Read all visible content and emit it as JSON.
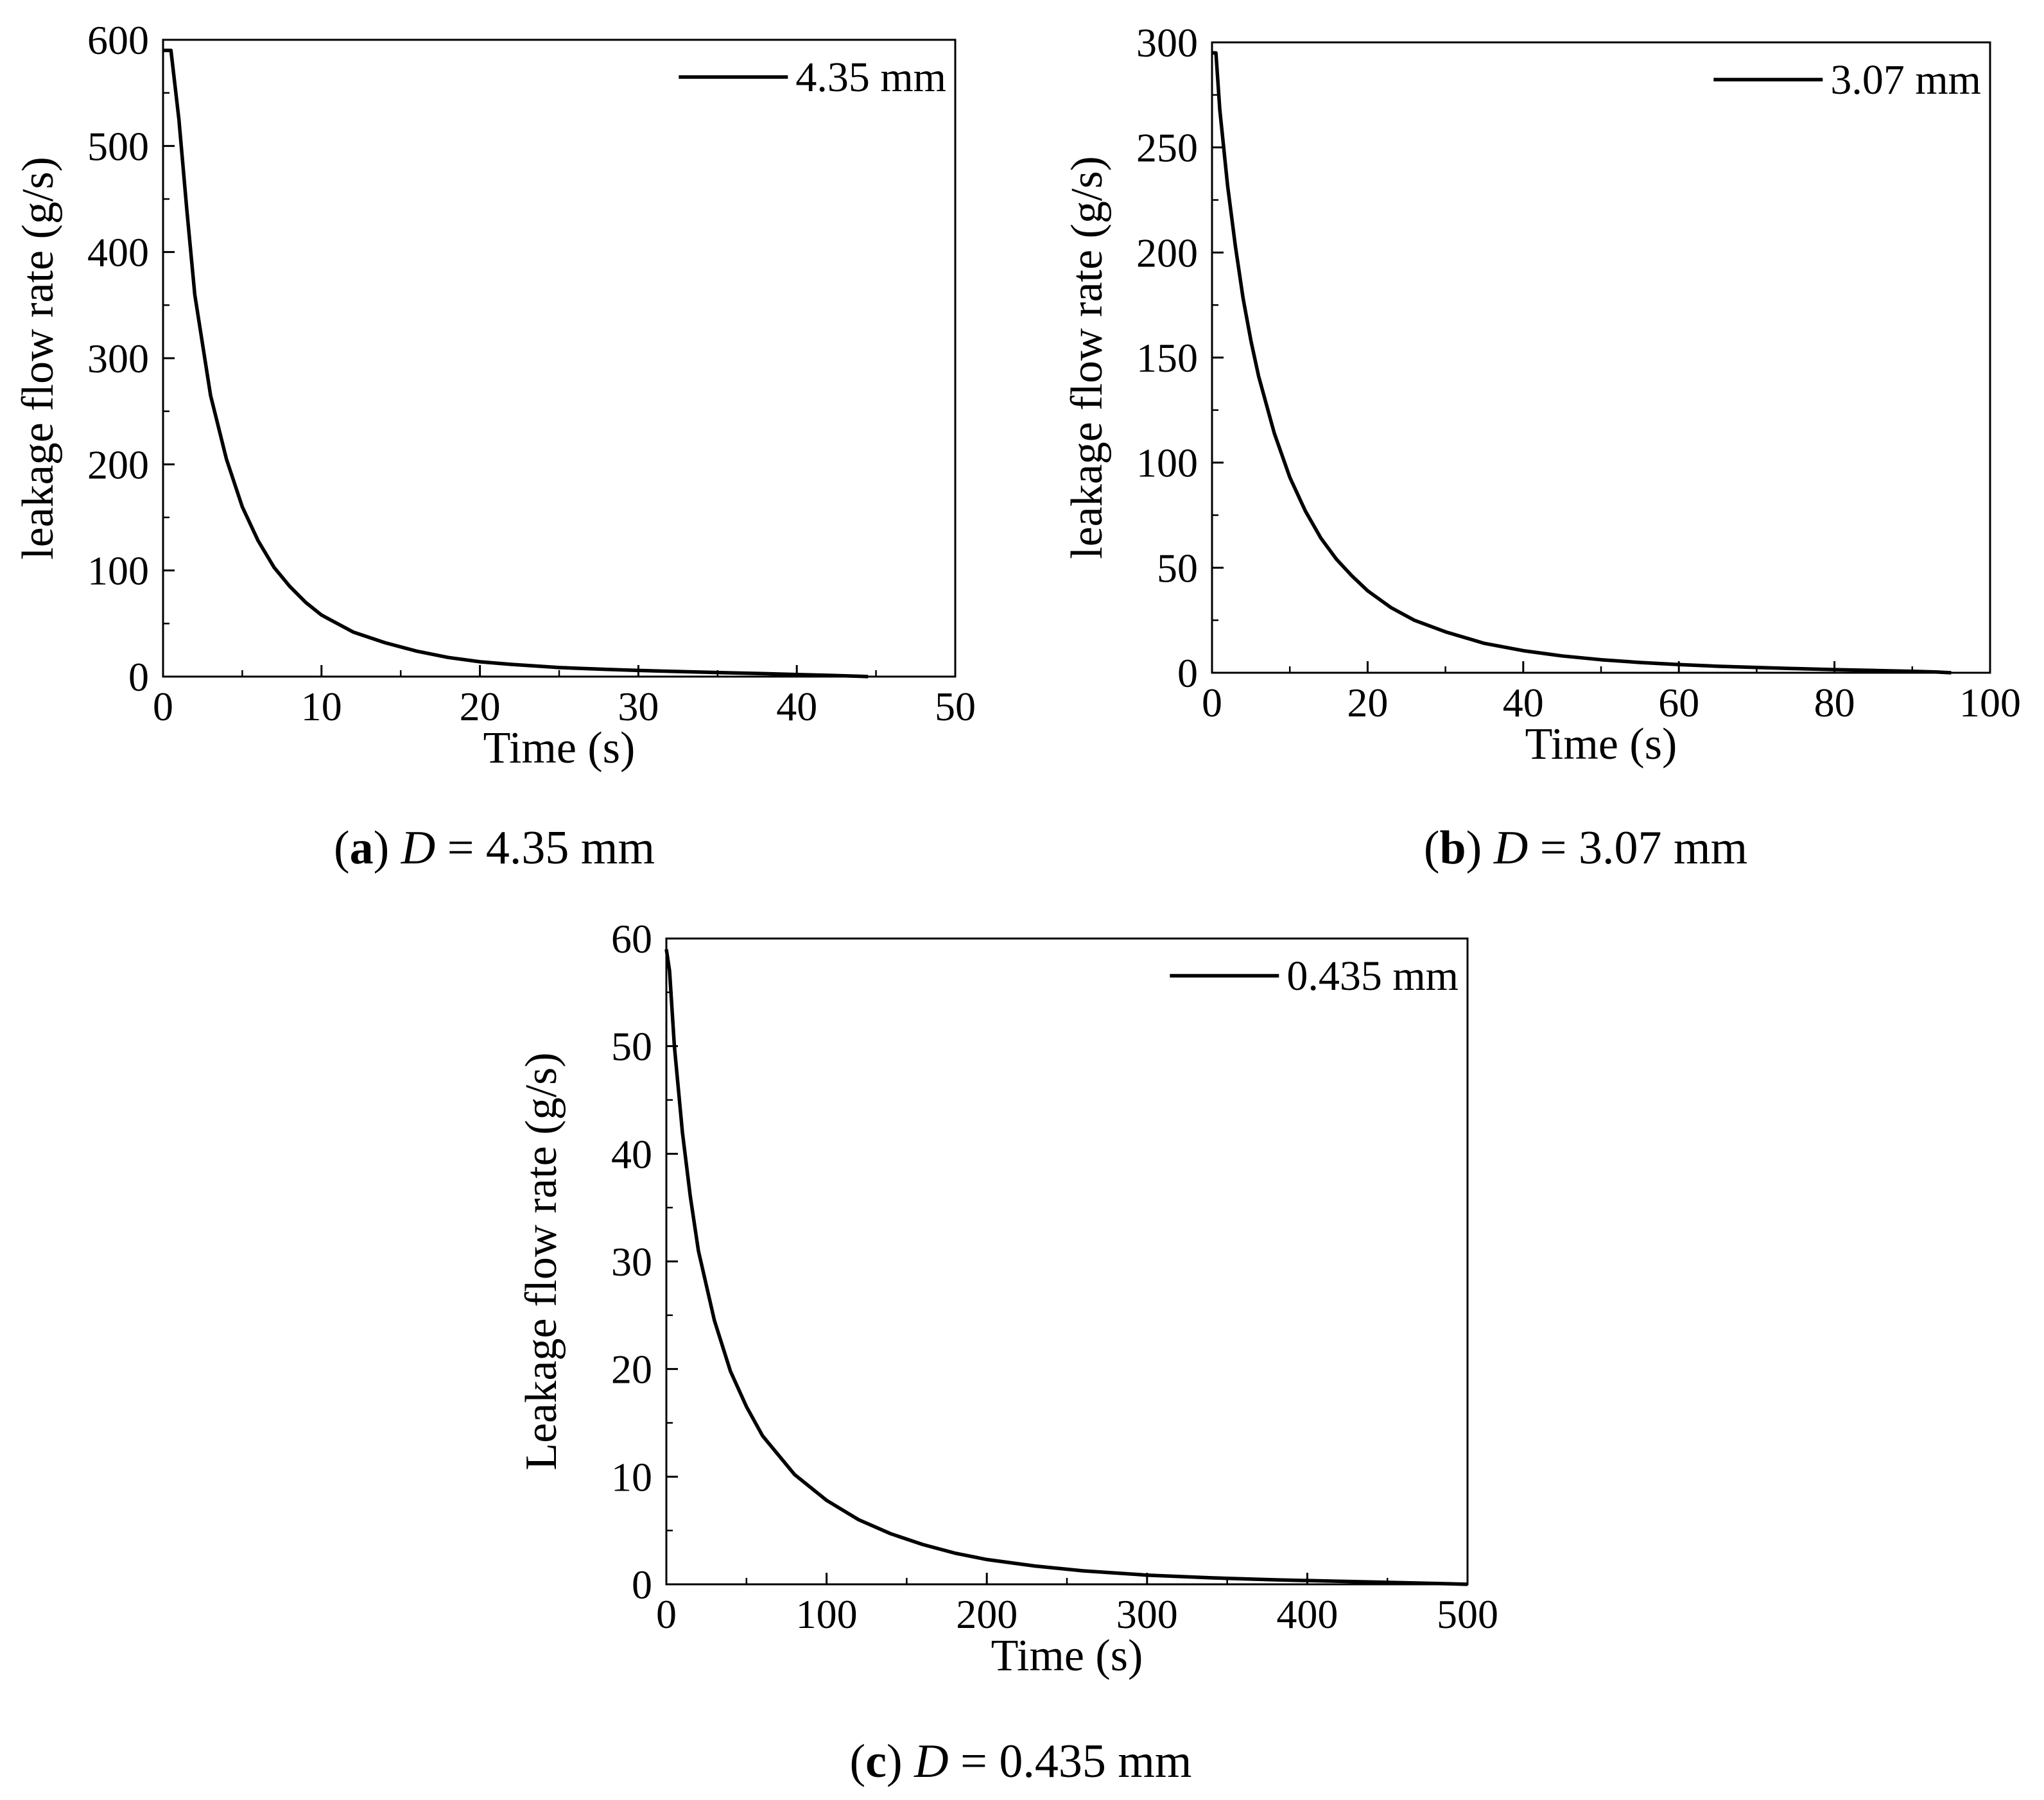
{
  "chart_data": [
    {
      "type": "line",
      "caption": {
        "label": "a",
        "open": "(",
        "close": ")",
        "var": "D",
        "eq": " = 4.35 mm"
      },
      "xlabel": "Time (s)",
      "ylabel": "leakage flow rate (g/s)",
      "xlim": [
        0,
        50
      ],
      "ylim": [
        0,
        600
      ],
      "xticks": [
        0,
        10,
        20,
        30,
        40,
        50
      ],
      "yticks": [
        0,
        100,
        200,
        300,
        400,
        500,
        600
      ],
      "grid": false,
      "legend_position": "top-right",
      "series": [
        {
          "name": "4.35 mm",
          "color": "#000000",
          "x": [
            0,
            0.5,
            1,
            1.5,
            2,
            3,
            4,
            5,
            6,
            7,
            8,
            9,
            10,
            12,
            14,
            16,
            18,
            20,
            22,
            25,
            28,
            30,
            33,
            36,
            38,
            40,
            42,
            43,
            44,
            44.5
          ],
          "y": [
            590,
            590,
            525,
            440,
            360,
            265,
            205,
            160,
            128,
            103,
            85,
            70,
            58,
            42,
            32,
            24,
            18,
            14,
            11.5,
            8.5,
            6.8,
            5.8,
            4.6,
            3.5,
            2.8,
            2.0,
            1.2,
            0.8,
            0.3,
            0
          ]
        }
      ]
    },
    {
      "type": "line",
      "caption": {
        "label": "b",
        "open": "(",
        "close": ")",
        "var": "D",
        "eq": " = 3.07 mm"
      },
      "xlabel": "Time (s)",
      "ylabel": "leakage flow rate (g/s)",
      "xlim": [
        0,
        100
      ],
      "ylim": [
        0,
        300
      ],
      "xticks": [
        0,
        20,
        40,
        60,
        80,
        100
      ],
      "yticks": [
        0,
        50,
        100,
        150,
        200,
        250,
        300
      ],
      "grid": false,
      "legend_position": "top-right",
      "series": [
        {
          "name": "3.07 mm",
          "color": "#000000",
          "x": [
            0,
            0.5,
            1,
            2,
            3,
            4,
            5,
            6,
            8,
            10,
            12,
            14,
            16,
            18,
            20,
            23,
            26,
            30,
            35,
            40,
            45,
            50,
            55,
            60,
            65,
            70,
            75,
            80,
            85,
            90,
            93,
            95
          ],
          "y": [
            295,
            295,
            268,
            232,
            203,
            178,
            158,
            141,
            114,
            93,
            77,
            64,
            54,
            46,
            39,
            31,
            25,
            19.5,
            14,
            10.5,
            8,
            6.2,
            4.9,
            3.9,
            3.1,
            2.5,
            2.0,
            1.5,
            1.1,
            0.7,
            0.4,
            0
          ]
        }
      ]
    },
    {
      "type": "line",
      "caption": {
        "label": "c",
        "open": "(",
        "close": ")",
        "var": "D",
        "eq": " = 0.435 mm"
      },
      "xlabel": "Time (s)",
      "ylabel": "Leakage flow rate (g/s)",
      "xlim": [
        0,
        500
      ],
      "ylim": [
        0,
        60
      ],
      "xticks": [
        0,
        100,
        200,
        300,
        400,
        500
      ],
      "yticks": [
        0,
        10,
        20,
        30,
        40,
        50,
        60
      ],
      "grid": false,
      "legend_position": "top-right",
      "series": [
        {
          "name": "0.435 mm",
          "color": "#000000",
          "x": [
            0,
            2,
            5,
            10,
            15,
            20,
            30,
            40,
            50,
            60,
            80,
            100,
            120,
            140,
            160,
            180,
            200,
            230,
            260,
            300,
            340,
            380,
            420,
            460,
            490,
            500
          ],
          "y": [
            59,
            57,
            50,
            42,
            36,
            31,
            24.5,
            19.8,
            16.5,
            13.8,
            10.2,
            7.8,
            6.0,
            4.7,
            3.7,
            2.9,
            2.3,
            1.7,
            1.25,
            0.85,
            0.6,
            0.42,
            0.28,
            0.15,
            0.05,
            0
          ]
        }
      ]
    }
  ]
}
